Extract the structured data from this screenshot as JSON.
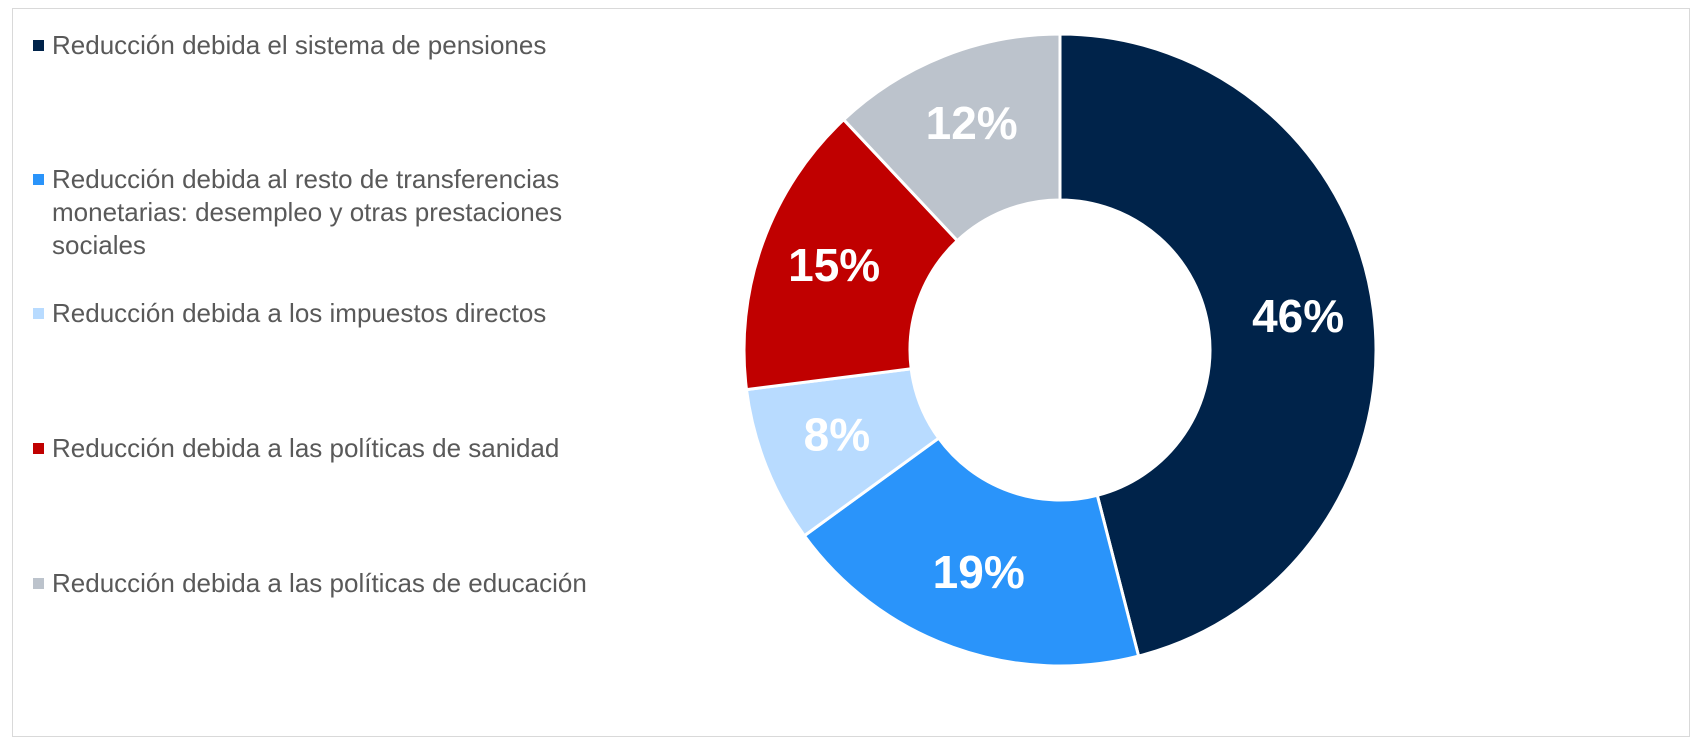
{
  "chart_data": {
    "type": "donut",
    "categories": [
      "Reducción debida el sistema de pensiones",
      "Reducción debida al resto de transferencias monetarias: desempleo y otras prestaciones sociales",
      "Reducción debida a los impuestos directos",
      "Reducción debida a las políticas de sanidad",
      "Reducción debida a las políticas de educación"
    ],
    "values": [
      46,
      19,
      8,
      15,
      12
    ],
    "value_labels": [
      "46%",
      "19%",
      "8%",
      "15%",
      "12%"
    ],
    "colors": [
      "#00234a",
      "#2a94fa",
      "#b8dbff",
      "#c00000",
      "#bcc3cc"
    ],
    "legend": "left"
  }
}
